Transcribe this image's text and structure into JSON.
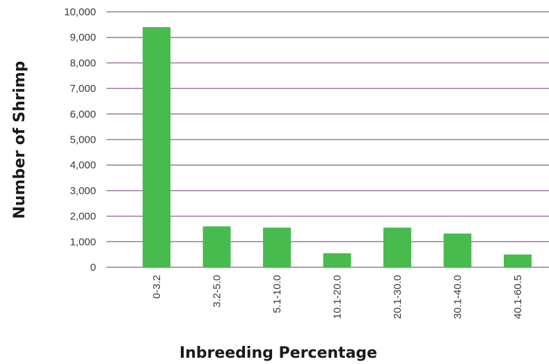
{
  "chart_data": {
    "type": "bar",
    "categories": [
      "0-3.2",
      "3.2-5.0",
      "5.1-10.0",
      "10.1-20.0",
      "20.1-30.0",
      "30.1-40.0",
      "40.1-60.5"
    ],
    "values": [
      9400,
      1600,
      1550,
      550,
      1550,
      1320,
      500
    ],
    "xlabel": "Inbreeding Percentage",
    "ylabel": "Number of Shrimp",
    "ylim": [
      0,
      10000
    ],
    "yticks": [
      0,
      1000,
      2000,
      3000,
      4000,
      5000,
      6000,
      7000,
      8000,
      9000,
      10000
    ],
    "ytick_labels": [
      "0",
      "1,000",
      "2,000",
      "3,000",
      "4,000",
      "5,000",
      "6,000",
      "7,000",
      "8,000",
      "9,000",
      "10,000"
    ],
    "grid": true,
    "legend": false,
    "colors": {
      "bar": "#48bb4e",
      "grid": "#9b7a9b"
    }
  }
}
